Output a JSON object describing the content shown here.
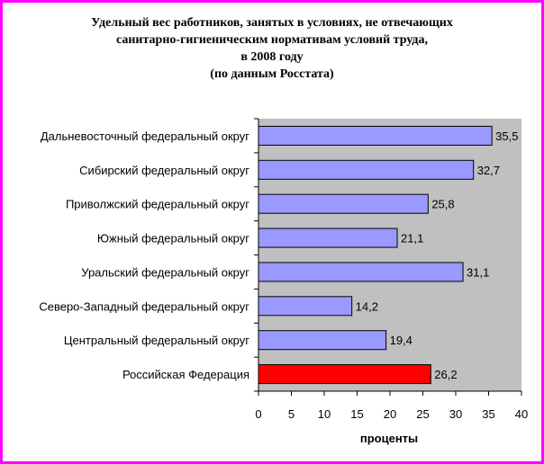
{
  "chart_data": {
    "type": "bar",
    "orientation": "horizontal",
    "title_lines": [
      "Удельный вес работников, занятых в условиях, не отвечающих",
      "санитарно-гигиеническим нормативам условий труда,",
      "в 2008 году",
      "(по данным Росстата)"
    ],
    "xlabel": "проценты",
    "xlim": [
      0,
      40
    ],
    "xticks": [
      "0",
      "5",
      "10",
      "15",
      "20",
      "25",
      "30",
      "35",
      "40"
    ],
    "grid": false,
    "legend": "none",
    "categories": [
      "Дальневосточный федеральный округ",
      "Сибирский федеральный округ",
      "Приволжский федеральный округ",
      "Южный федеральный округ",
      "Уральский федеральный округ",
      "Северо-Западный федеральный округ",
      "Центральный федеральный округ",
      "Российская Федерация"
    ],
    "values": [
      35.5,
      32.7,
      25.8,
      21.1,
      31.1,
      14.2,
      19.4,
      26.2
    ],
    "value_labels": [
      "35,5",
      "32,7",
      "25,8",
      "21,1",
      "31,1",
      "14,2",
      "19,4",
      "26,2"
    ],
    "bar_colors": [
      "#9999ff",
      "#9999ff",
      "#9999ff",
      "#9999ff",
      "#9999ff",
      "#9999ff",
      "#9999ff",
      "#ff0000"
    ],
    "plot_background": "#c0c0c0",
    "frame_color": "#ff00ff"
  }
}
